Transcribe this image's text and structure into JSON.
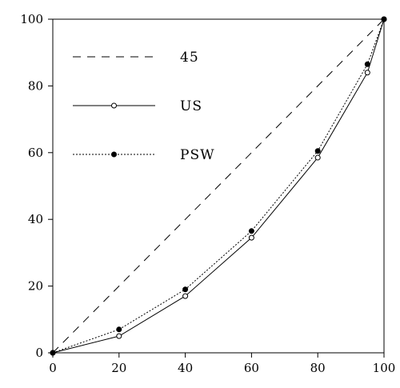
{
  "chart_data": {
    "type": "line",
    "title": "",
    "xlabel": "",
    "ylabel": "",
    "xlim": [
      0,
      100
    ],
    "ylim": [
      0,
      100
    ],
    "xticks": [
      0,
      20,
      40,
      60,
      80,
      100
    ],
    "yticks": [
      0,
      20,
      40,
      60,
      80,
      100
    ],
    "grid": false,
    "legend_position": "top-left",
    "series": [
      {
        "name": "45",
        "style": "dashed",
        "marker": "none",
        "color": "#000000",
        "x": [
          0,
          100
        ],
        "y": [
          0,
          100
        ]
      },
      {
        "name": "US",
        "style": "solid",
        "marker": "open-circle",
        "color": "#000000",
        "x": [
          0,
          20,
          40,
          60,
          80,
          95,
          100
        ],
        "y": [
          0,
          5,
          17,
          34.5,
          58.5,
          84,
          100
        ]
      },
      {
        "name": "PSW",
        "style": "dotted",
        "marker": "filled-circle",
        "color": "#000000",
        "x": [
          0,
          20,
          40,
          60,
          80,
          95,
          100
        ],
        "y": [
          0,
          7,
          19,
          36.5,
          60.5,
          86.5,
          100
        ]
      }
    ]
  }
}
